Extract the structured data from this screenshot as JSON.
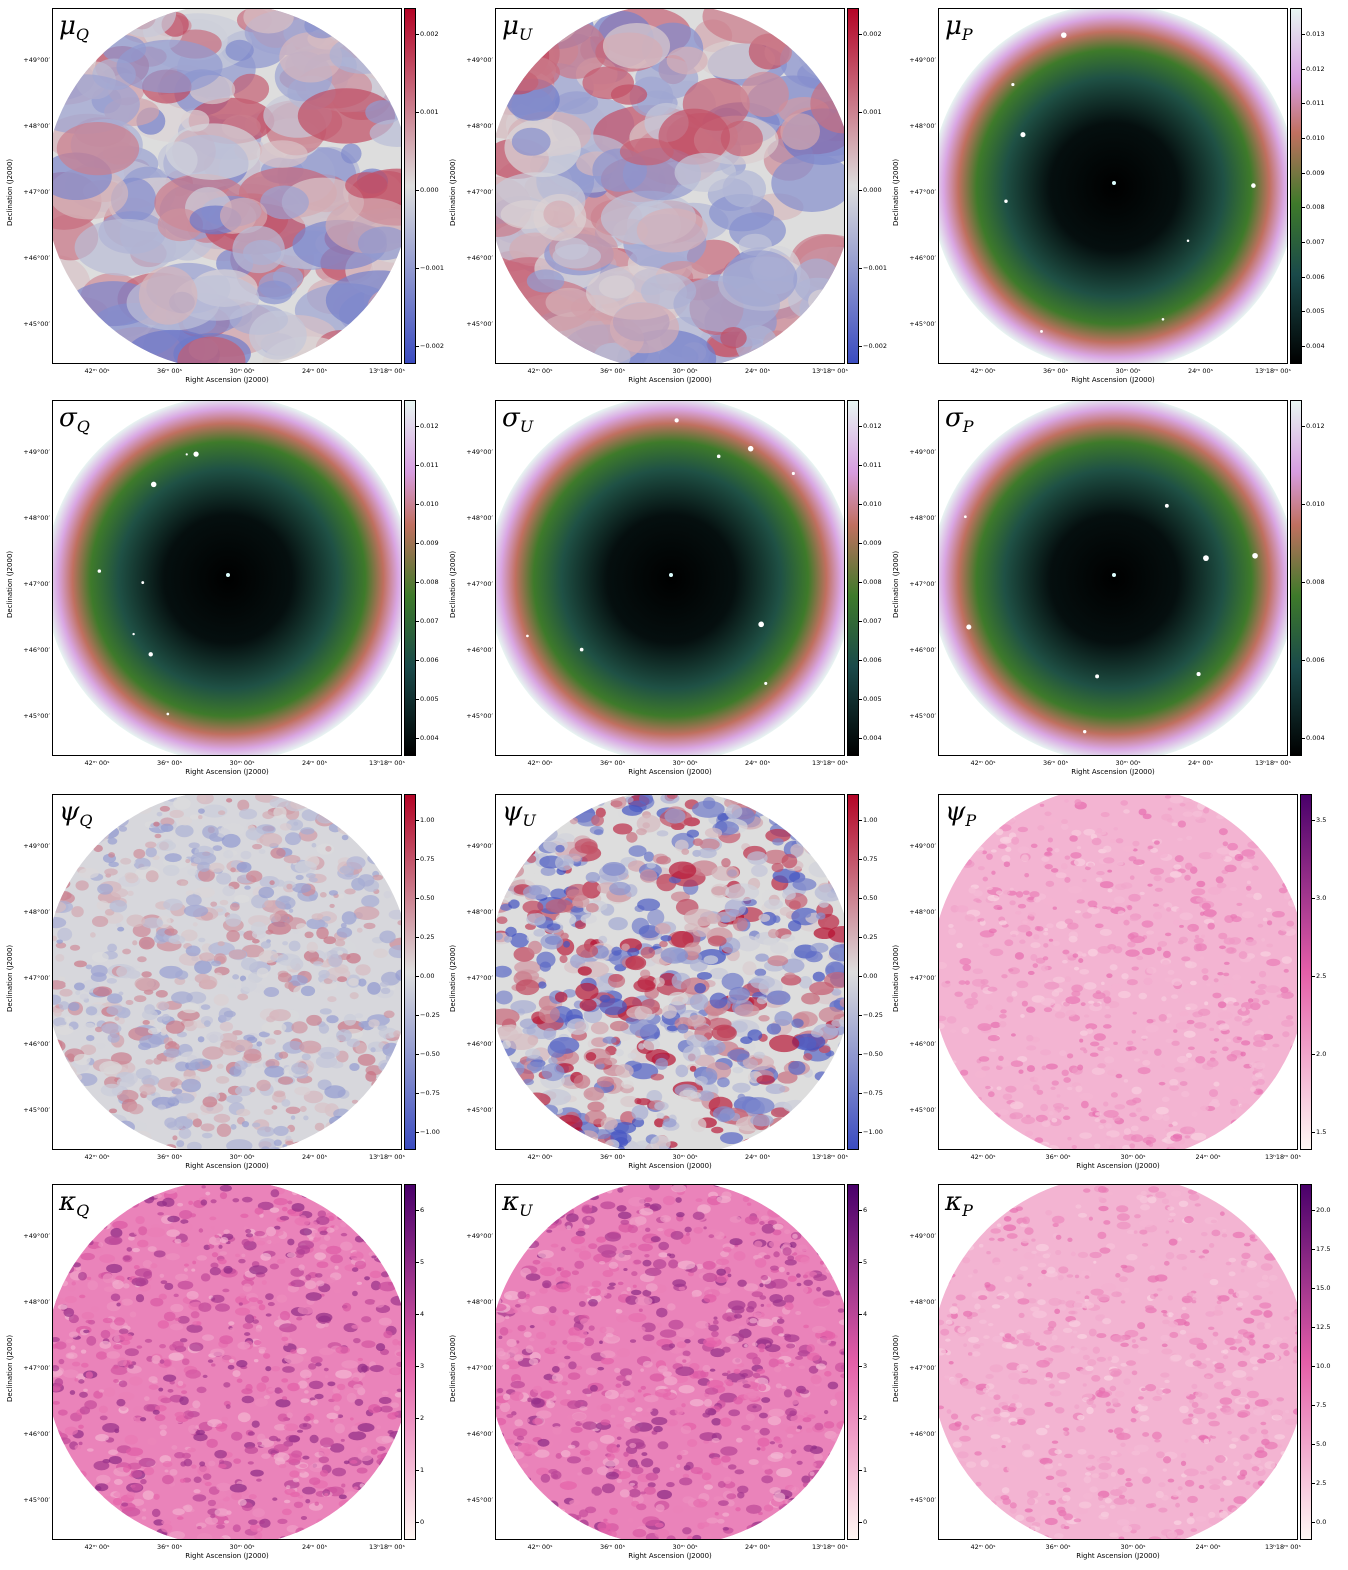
{
  "axis_labels": {
    "x": "Right Ascension (J2000)",
    "y": "Declination (J2000)"
  },
  "x_ticks": [
    "42ᵐ 00ˢ",
    "36ᵐ 00ˢ",
    "30ᵐ 00ˢ",
    "24ᵐ 00ˢ",
    "13ʰ18ᵐ 00ˢ"
  ],
  "y_ticks": [
    "+49°00′",
    "+48°00′",
    "+47°00′",
    "+46°00′",
    "+45°00′"
  ],
  "panels": [
    {
      "id": "mu_q",
      "symbol": "μ",
      "sub": "Q",
      "colormap": "coolwarm",
      "pattern": "smooth",
      "colorbar_ticks": [
        "0.002",
        "0.001",
        "0.000",
        "−0.001",
        "−0.002"
      ]
    },
    {
      "id": "mu_u",
      "symbol": "μ",
      "sub": "U",
      "colormap": "coolwarm",
      "pattern": "smooth",
      "colorbar_ticks": [
        "0.002",
        "0.001",
        "0.000",
        "−0.001",
        "−0.002"
      ]
    },
    {
      "id": "mu_p",
      "symbol": "μ",
      "sub": "P",
      "colormap": "cubehelix",
      "pattern": "radial",
      "colorbar_ticks": [
        "0.013",
        "0.012",
        "0.011",
        "0.010",
        "0.009",
        "0.008",
        "0.007",
        "0.006",
        "0.005",
        "0.004"
      ]
    },
    {
      "id": "sigma_q",
      "symbol": "σ",
      "sub": "Q",
      "colormap": "cubehelix",
      "pattern": "radial",
      "colorbar_ticks": [
        "0.012",
        "0.011",
        "0.010",
        "0.009",
        "0.008",
        "0.007",
        "0.006",
        "0.005",
        "0.004"
      ]
    },
    {
      "id": "sigma_u",
      "symbol": "σ",
      "sub": "U",
      "colormap": "cubehelix",
      "pattern": "radial",
      "colorbar_ticks": [
        "0.012",
        "0.011",
        "0.010",
        "0.009",
        "0.008",
        "0.007",
        "0.006",
        "0.005",
        "0.004"
      ]
    },
    {
      "id": "sigma_p",
      "symbol": "σ",
      "sub": "P",
      "colormap": "cubehelix",
      "pattern": "radial",
      "colorbar_ticks": [
        "0.012",
        "0.010",
        "0.008",
        "0.006",
        "0.004"
      ]
    },
    {
      "id": "psi_q",
      "symbol": "ψ",
      "sub": "Q",
      "colormap": "coolwarm",
      "pattern": "noise",
      "colorbar_ticks": [
        "1.00",
        "0.75",
        "0.50",
        "0.25",
        "0.00",
        "−0.25",
        "−0.50",
        "−0.75",
        "−1.00"
      ]
    },
    {
      "id": "psi_u",
      "symbol": "ψ",
      "sub": "U",
      "colormap": "coolwarm",
      "pattern": "noise-strong",
      "colorbar_ticks": [
        "1.00",
        "0.75",
        "0.50",
        "0.25",
        "0.00",
        "−0.25",
        "−0.50",
        "−0.75",
        "−1.00"
      ]
    },
    {
      "id": "psi_p",
      "symbol": "ψ",
      "sub": "P",
      "colormap": "RdPu",
      "pattern": "noise-pink",
      "colorbar_ticks": [
        "3.5",
        "3.0",
        "2.5",
        "2.0",
        "1.5"
      ]
    },
    {
      "id": "kappa_q",
      "symbol": "κ",
      "sub": "Q",
      "colormap": "RdPu",
      "pattern": "noise-pink-strong",
      "colorbar_ticks": [
        "6",
        "5",
        "4",
        "3",
        "2",
        "1",
        "0"
      ]
    },
    {
      "id": "kappa_u",
      "symbol": "κ",
      "sub": "U",
      "colormap": "RdPu",
      "pattern": "noise-pink-strong",
      "colorbar_ticks": [
        "6",
        "5",
        "4",
        "3",
        "2",
        "1",
        "0"
      ]
    },
    {
      "id": "kappa_p",
      "symbol": "κ",
      "sub": "P",
      "colormap": "RdPu",
      "pattern": "noise-pink",
      "colorbar_ticks": [
        "20.0",
        "17.5",
        "15.0",
        "12.5",
        "10.0",
        "7.5",
        "5.0",
        "2.5",
        "0.0"
      ]
    }
  ],
  "colors": {
    "coolwarm_low": "#3b4cc0",
    "coolwarm_mid": "#dddddd",
    "coolwarm_high": "#b40426",
    "cubehelix_low": "#000000",
    "cubehelix_mid1": "#1a4a4a",
    "cubehelix_mid2": "#3e7a2a",
    "cubehelix_mid3": "#c07060",
    "cubehelix_mid4": "#d79de0",
    "cubehelix_high": "#e8f6f2",
    "rdpu_low": "#fff7f3",
    "rdpu_mid": "#e45fa8",
    "rdpu_high": "#49006a"
  }
}
